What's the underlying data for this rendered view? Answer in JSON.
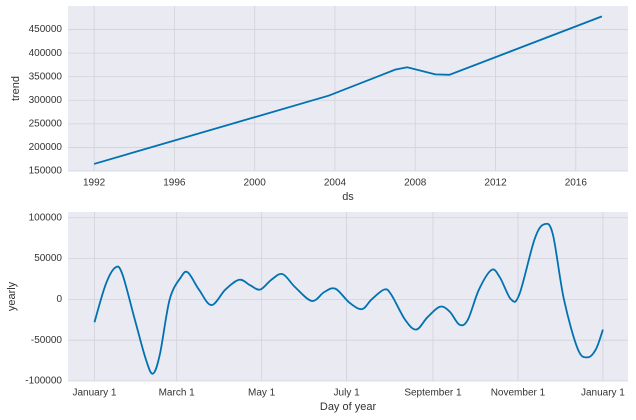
{
  "chart_data": [
    {
      "type": "line",
      "ylabel": "trend",
      "xlabel": "ds",
      "x": [
        1992.0,
        2003.7,
        2007.0,
        2007.6,
        2009.0,
        2009.7,
        2017.3
      ],
      "series": [
        {
          "name": "trend",
          "color": "#0072b2",
          "values": [
            165000,
            310000,
            365000,
            370000,
            355000,
            354000,
            478000
          ]
        }
      ],
      "xlim": [
        1990.7,
        2018.6
      ],
      "xticks": [
        1992,
        1996,
        2000,
        2004,
        2008,
        2012,
        2016
      ],
      "ylim": [
        150000,
        500000
      ],
      "yticks": [
        150000,
        200000,
        250000,
        300000,
        350000,
        400000,
        450000
      ],
      "grid": true
    },
    {
      "type": "line",
      "ylabel": "yearly",
      "xlabel": "Day of year",
      "x": [
        0,
        8,
        15,
        20,
        29,
        37,
        42,
        47,
        54,
        62,
        67,
        75,
        84,
        94,
        104,
        112,
        119,
        127,
        135,
        144,
        156,
        165,
        173,
        183,
        192,
        199,
        208,
        213,
        223,
        231,
        239,
        248,
        255,
        262,
        268,
        276,
        285,
        291,
        299,
        305,
        316,
        323,
        329,
        337,
        347,
        354,
        360,
        365
      ],
      "series": [
        {
          "name": "yearly",
          "color": "#0072b2",
          "values": [
            -28000,
            18000,
            39000,
            31000,
            -25000,
            -74000,
            -91000,
            -67000,
            0,
            27000,
            33000,
            12000,
            -7000,
            12000,
            24000,
            17000,
            12000,
            24000,
            31000,
            15000,
            -2000,
            9000,
            13000,
            -4000,
            -12000,
            0,
            12000,
            6000,
            -25000,
            -37000,
            -22000,
            -9000,
            -15000,
            -31000,
            -25000,
            12000,
            36000,
            27000,
            0,
            6000,
            74000,
            92000,
            80000,
            0,
            -61000,
            -71000,
            -61000,
            -37000
          ]
        }
      ],
      "xlim": [
        -19,
        383
      ],
      "xticks": [
        {
          "value": 0,
          "label": "January 1"
        },
        {
          "value": 59,
          "label": "March 1"
        },
        {
          "value": 120,
          "label": "May 1"
        },
        {
          "value": 181,
          "label": "July 1"
        },
        {
          "value": 243,
          "label": "September 1"
        },
        {
          "value": 304,
          "label": "November 1"
        },
        {
          "value": 365,
          "label": "January 1"
        }
      ],
      "ylim": [
        -100000,
        107000
      ],
      "yticks": [
        -100000,
        -50000,
        0,
        50000,
        100000
      ],
      "grid": true
    }
  ]
}
